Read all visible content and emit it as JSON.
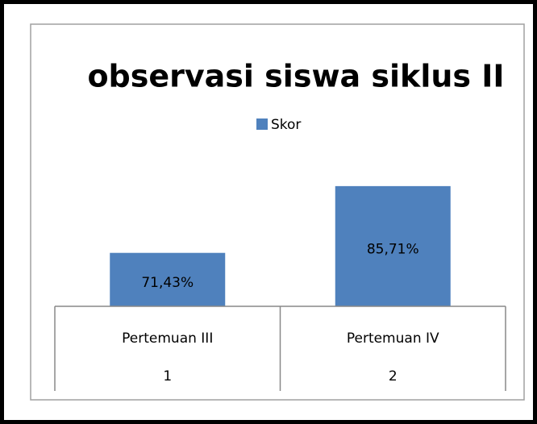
{
  "chart_data": {
    "type": "bar",
    "title": "observasi siswa siklus II",
    "categories": [
      "Pertemuan III",
      "Pertemuan IV"
    ],
    "categories_outer": [
      "1",
      "2"
    ],
    "series": [
      {
        "name": "Skor",
        "color": "#4f81bd",
        "values": [
          71.43,
          85.71
        ],
        "value_labels": [
          "71,43%",
          "85,71%"
        ]
      }
    ],
    "ylim": [
      60,
      90
    ],
    "legend": "top"
  }
}
